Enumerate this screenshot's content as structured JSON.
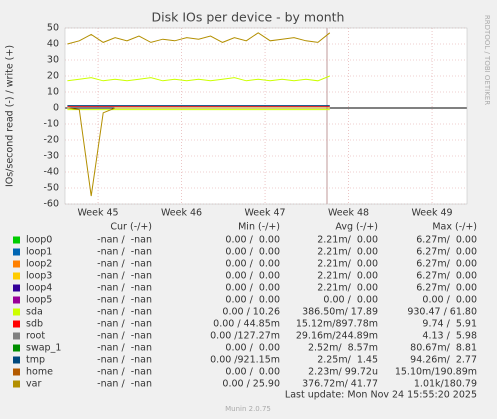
{
  "chart_data": {
    "type": "line",
    "title": "Disk IOs per device - by month",
    "y_label": "IOs/second read (-) / write (+)",
    "side_note": "RRDTOOL / TOBI OETIKER",
    "last_update": "Last update: Mon Nov 24 15:55:20 2025",
    "footer": "Munin 2.0.75",
    "legend_headers": [
      "Cur (-/+)",
      "Min (-/+)",
      "Avg (-/+)",
      "Max (-/+)"
    ],
    "xlim": [
      -0.2,
      33.5
    ],
    "xticks": [
      {
        "value": 2.57,
        "label": "Week 45"
      },
      {
        "value": 9.57,
        "label": "Week 46"
      },
      {
        "value": 16.57,
        "label": "Week 47"
      },
      {
        "value": 23.57,
        "label": "Week 48"
      },
      {
        "value": 30.57,
        "label": "Week 49"
      }
    ],
    "ylim": [
      -60,
      50
    ],
    "yticks": [
      50,
      40,
      30,
      20,
      10,
      0,
      -10,
      -20,
      -30,
      -40,
      -50,
      -60
    ],
    "grid": true,
    "x": [
      0,
      1,
      2,
      3,
      4,
      5,
      6,
      7,
      8,
      9,
      10,
      11,
      12,
      13,
      14,
      15,
      16,
      17,
      18,
      19,
      20,
      21,
      22
    ],
    "series": [
      {
        "name": "loop0",
        "color": "#00cc00",
        "cur": "-nan /  -nan",
        "min": "0.00 /  0.00",
        "avg": "2.21m/  0.00",
        "max": "6.27m/  0.00"
      },
      {
        "name": "loop1",
        "color": "#0066b3",
        "cur": "-nan /  -nan",
        "min": "0.00 /  0.00",
        "avg": "2.21m/  0.00",
        "max": "6.27m/  0.00"
      },
      {
        "name": "loop2",
        "color": "#ff8000",
        "cur": "-nan /  -nan",
        "min": "0.00 /  0.00",
        "avg": "2.21m/  0.00",
        "max": "6.27m/  0.00"
      },
      {
        "name": "loop3",
        "color": "#ffcc00",
        "cur": "-nan /  -nan",
        "min": "0.00 /  0.00",
        "avg": "2.21m/  0.00",
        "max": "6.27m/  0.00"
      },
      {
        "name": "loop4",
        "color": "#330099",
        "cur": "-nan /  -nan",
        "min": "0.00 /  0.00",
        "avg": "2.21m/  0.00",
        "max": "6.27m/  0.00"
      },
      {
        "name": "loop5",
        "color": "#990099",
        "cur": "-nan /  -nan",
        "min": "0.00 /  0.00",
        "avg": "0.00 /  0.00",
        "max": "0.00 /  0.00"
      },
      {
        "name": "sda",
        "color": "#ccff00",
        "cur": "-nan /  -nan",
        "min": "0.00 / 10.26",
        "avg": "386.50m/ 17.89",
        "max": "930.47 / 61.80",
        "write": [
          17,
          18,
          19,
          17,
          18,
          17,
          18,
          19,
          17,
          18,
          17,
          18,
          17,
          18,
          19,
          17,
          18,
          17,
          18,
          17,
          18,
          17,
          20
        ],
        "read": [
          -1,
          -1,
          -1,
          -1,
          -1,
          -1,
          -1,
          -1,
          -1,
          -1,
          -1,
          -1,
          -1,
          -1,
          -1,
          -1,
          -1,
          -1,
          -1,
          -1,
          -1,
          -1,
          -1
        ]
      },
      {
        "name": "sdb",
        "color": "#ff0000",
        "cur": "-nan /  -nan",
        "min": "0.00 / 44.85m",
        "avg": "15.12m/897.78m",
        "max": "9.74 /  5.91",
        "write": [
          1,
          1,
          1,
          1,
          1,
          1,
          1,
          1,
          1,
          1,
          1,
          1,
          1,
          1,
          1,
          1,
          1,
          1,
          1,
          1,
          1,
          1,
          1
        ]
      },
      {
        "name": "root",
        "color": "#808080",
        "cur": "-nan /  -nan",
        "min": "0.00 /127.27m",
        "avg": "29.16m/244.89m",
        "max": "4.13 /  5.98"
      },
      {
        "name": "swap_1",
        "color": "#008f00",
        "cur": "-nan /  -nan",
        "min": "0.00 /  0.00",
        "avg": "2.52m/  8.57m",
        "max": "80.67m/  8.81"
      },
      {
        "name": "tmp",
        "color": "#00487d",
        "cur": "-nan /  -nan",
        "min": "0.00 /921.15m",
        "avg": "2.25m/  1.45",
        "max": "94.26m/  2.77",
        "write": [
          1.5,
          1.5,
          1.5,
          1.5,
          1.5,
          1.5,
          1.5,
          1.5,
          1.5,
          1.5,
          1.5,
          1.5,
          1.5,
          1.5,
          1.5,
          1.5,
          1.5,
          1.5,
          1.5,
          1.5,
          1.5,
          1.5,
          1.5
        ]
      },
      {
        "name": "home",
        "color": "#b35a00",
        "cur": "-nan /  -nan",
        "min": "0.00 /  0.00",
        "avg": "2.23m/ 99.72u",
        "max": "15.10m/190.89m"
      },
      {
        "name": "var",
        "color": "#b38f00",
        "cur": "-nan /  -nan",
        "min": "0.00 / 25.90",
        "avg": "376.72m/ 41.77",
        "max": "1.01k/180.79",
        "write": [
          40,
          42,
          46,
          41,
          44,
          42,
          45,
          41,
          43,
          42,
          44,
          43,
          45,
          41,
          44,
          42,
          47,
          42,
          43,
          44,
          42,
          41,
          47
        ],
        "read": [
          0,
          -1,
          -55,
          -3,
          0,
          0,
          0,
          0,
          0,
          0,
          0,
          0,
          0,
          0,
          0,
          0,
          0,
          0,
          0,
          0,
          0,
          0,
          0
        ]
      }
    ]
  }
}
